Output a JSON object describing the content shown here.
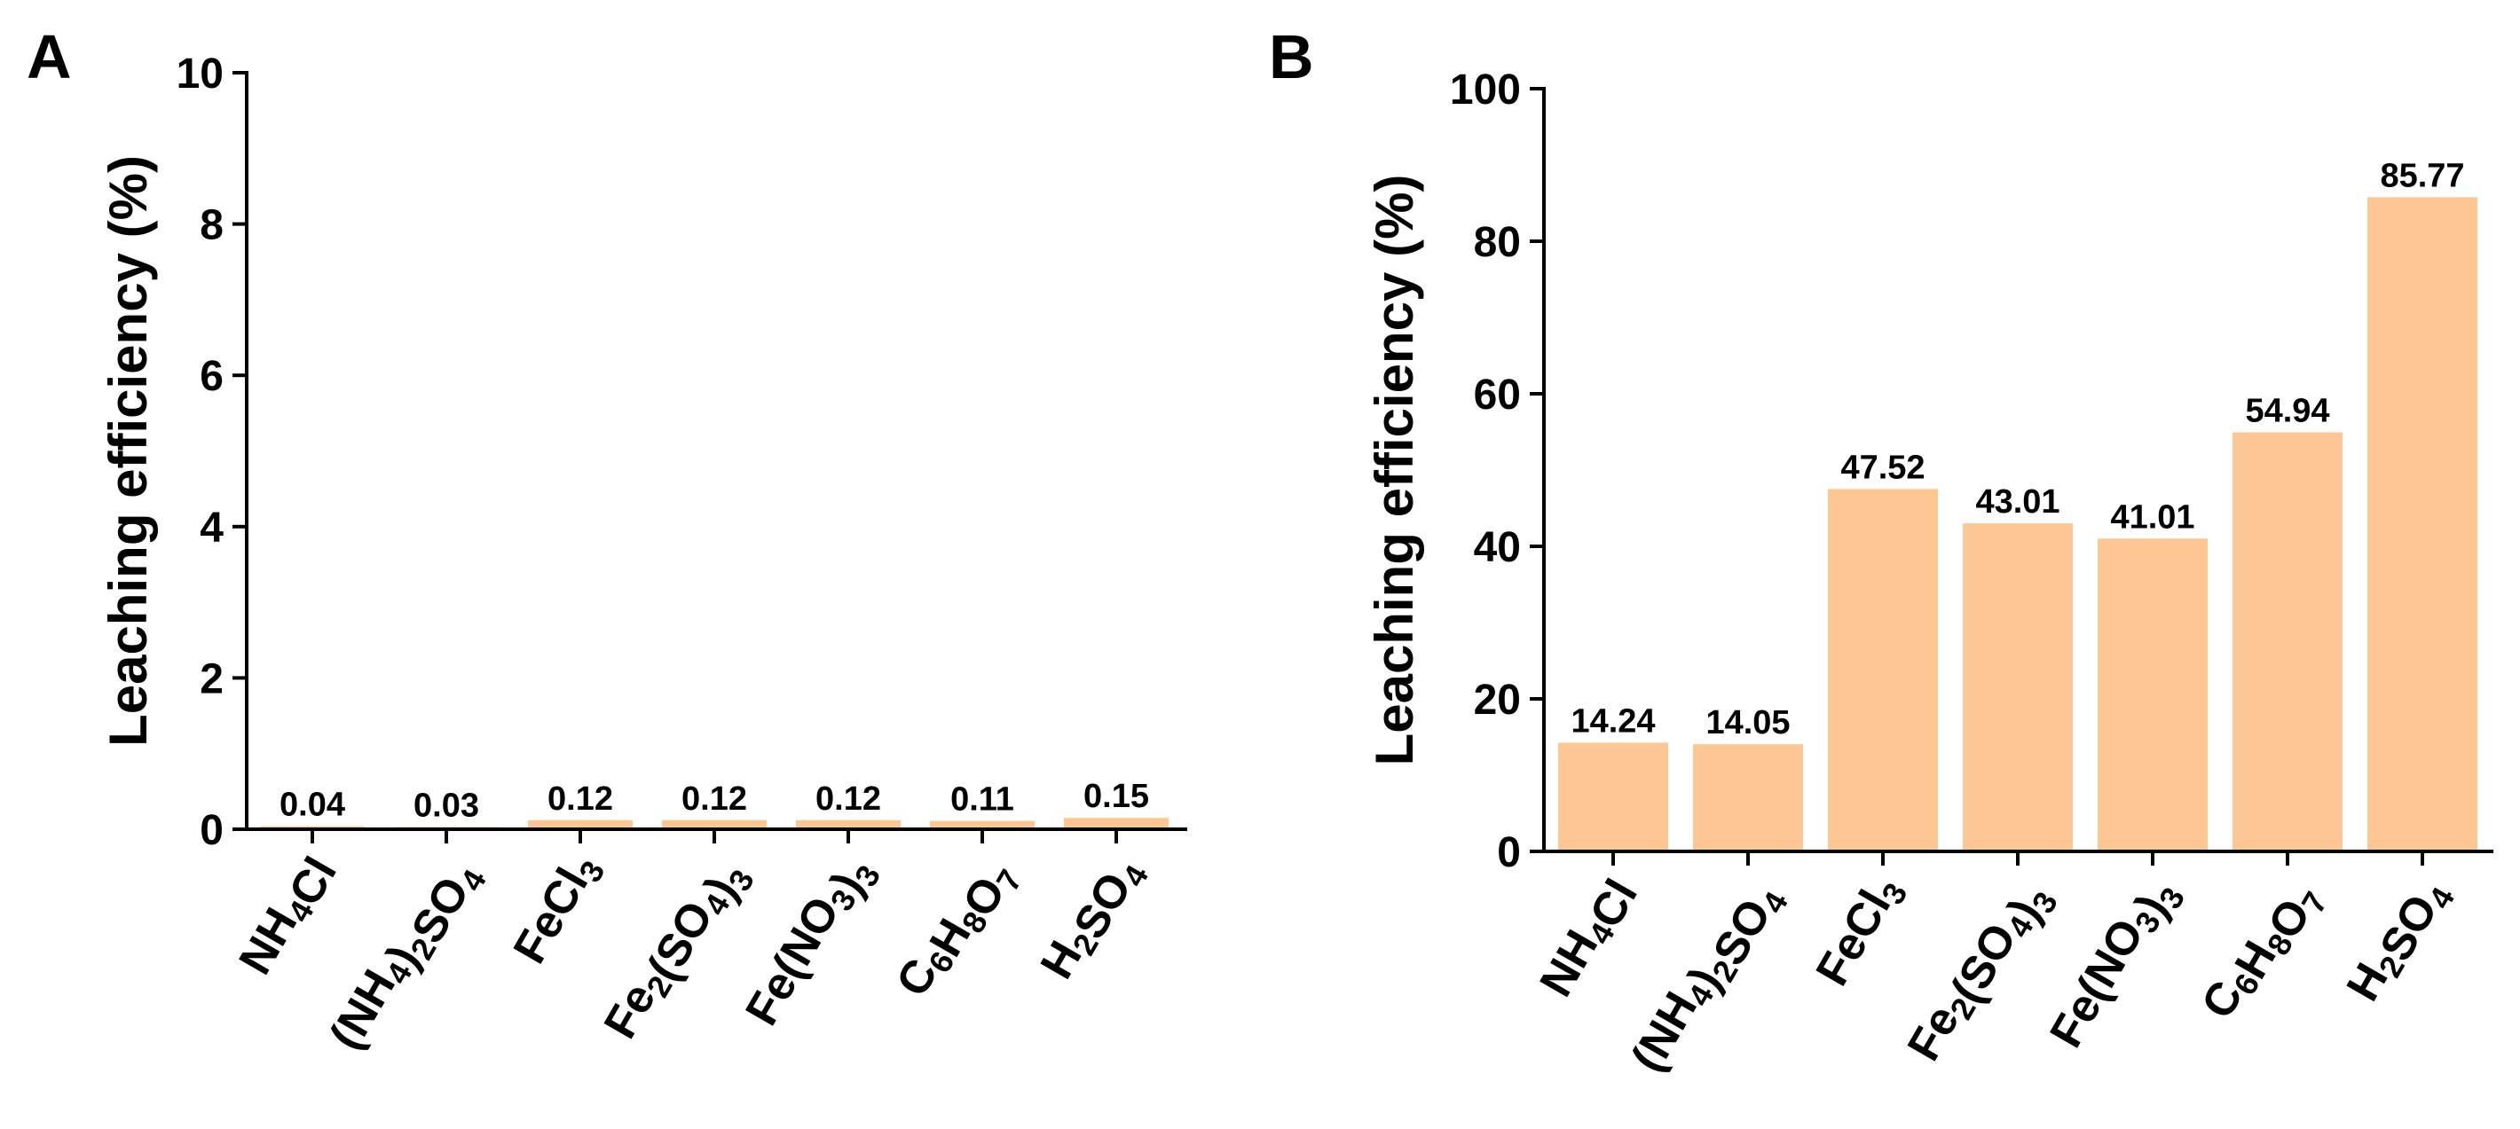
{
  "chart_data": [
    {
      "panel": "A",
      "type": "bar",
      "ylabel": "Leaching efficiency (%)",
      "ylim": [
        0,
        10
      ],
      "yticks": [
        0,
        2,
        4,
        6,
        8,
        10
      ],
      "bar_color": "#FCC792",
      "categories": [
        {
          "label": "NH4Cl",
          "parts": [
            {
              "t": "NH"
            },
            {
              "t": "4",
              "sub": true
            },
            {
              "t": "Cl"
            }
          ]
        },
        {
          "label": "(NH4)2SO4",
          "parts": [
            {
              "t": "(NH"
            },
            {
              "t": "4",
              "sub": true
            },
            {
              "t": ")"
            },
            {
              "t": "2",
              "sub": true
            },
            {
              "t": "SO"
            },
            {
              "t": "4",
              "sub": true
            }
          ]
        },
        {
          "label": "FeCl3",
          "parts": [
            {
              "t": "FeCl"
            },
            {
              "t": "3",
              "sub": true
            }
          ]
        },
        {
          "label": "Fe2(SO4)3",
          "parts": [
            {
              "t": "Fe"
            },
            {
              "t": "2",
              "sub": true
            },
            {
              "t": "(SO"
            },
            {
              "t": "4",
              "sub": true
            },
            {
              "t": ")"
            },
            {
              "t": "3",
              "sub": true
            }
          ]
        },
        {
          "label": "Fe(NO3)3",
          "parts": [
            {
              "t": "Fe(NO"
            },
            {
              "t": "3",
              "sub": true
            },
            {
              "t": ")"
            },
            {
              "t": "3",
              "sub": true
            }
          ]
        },
        {
          "label": "C6H8O7",
          "parts": [
            {
              "t": "C"
            },
            {
              "t": "6",
              "sub": true
            },
            {
              "t": "H"
            },
            {
              "t": "8",
              "sub": true
            },
            {
              "t": "O"
            },
            {
              "t": "7",
              "sub": true
            }
          ]
        },
        {
          "label": "H2SO4",
          "parts": [
            {
              "t": "H"
            },
            {
              "t": "2",
              "sub": true
            },
            {
              "t": "SO"
            },
            {
              "t": "4",
              "sub": true
            }
          ]
        }
      ],
      "values": [
        0.04,
        0.03,
        0.12,
        0.12,
        0.12,
        0.11,
        0.15
      ],
      "value_labels": [
        "0.04",
        "0.03",
        "0.12",
        "0.12",
        "0.12",
        "0.11",
        "0.15"
      ]
    },
    {
      "panel": "B",
      "type": "bar",
      "ylabel": "Leaching efficiency (%)",
      "ylim": [
        0,
        100
      ],
      "yticks": [
        0,
        20,
        40,
        60,
        80,
        100
      ],
      "bar_color": "#FCC792",
      "categories": [
        {
          "label": "NH4Cl",
          "parts": [
            {
              "t": "NH"
            },
            {
              "t": "4",
              "sub": true
            },
            {
              "t": "Cl"
            }
          ]
        },
        {
          "label": "(NH4)2SO4",
          "parts": [
            {
              "t": "(NH"
            },
            {
              "t": "4",
              "sub": true
            },
            {
              "t": ")"
            },
            {
              "t": "2",
              "sub": true
            },
            {
              "t": "SO"
            },
            {
              "t": "4",
              "sub": true
            }
          ]
        },
        {
          "label": "FeCl3",
          "parts": [
            {
              "t": "FeCl"
            },
            {
              "t": "3",
              "sub": true
            }
          ]
        },
        {
          "label": "Fe2(SO4)3",
          "parts": [
            {
              "t": "Fe"
            },
            {
              "t": "2",
              "sub": true
            },
            {
              "t": "(SO"
            },
            {
              "t": "4",
              "sub": true
            },
            {
              "t": ")"
            },
            {
              "t": "3",
              "sub": true
            }
          ]
        },
        {
          "label": "Fe(NO3)3",
          "parts": [
            {
              "t": "Fe(NO"
            },
            {
              "t": "3",
              "sub": true
            },
            {
              "t": ")"
            },
            {
              "t": "3",
              "sub": true
            }
          ]
        },
        {
          "label": "C6H8O7",
          "parts": [
            {
              "t": "C"
            },
            {
              "t": "6",
              "sub": true
            },
            {
              "t": "H"
            },
            {
              "t": "8",
              "sub": true
            },
            {
              "t": "O"
            },
            {
              "t": "7",
              "sub": true
            }
          ]
        },
        {
          "label": "H2SO4",
          "parts": [
            {
              "t": "H"
            },
            {
              "t": "2",
              "sub": true
            },
            {
              "t": "SO"
            },
            {
              "t": "4",
              "sub": true
            }
          ]
        }
      ],
      "values": [
        14.24,
        14.05,
        47.52,
        43.01,
        41.01,
        54.94,
        85.77
      ],
      "value_labels": [
        "14.24",
        "14.05",
        "47.52",
        "43.01",
        "41.01",
        "54.94",
        "85.77"
      ]
    }
  ]
}
